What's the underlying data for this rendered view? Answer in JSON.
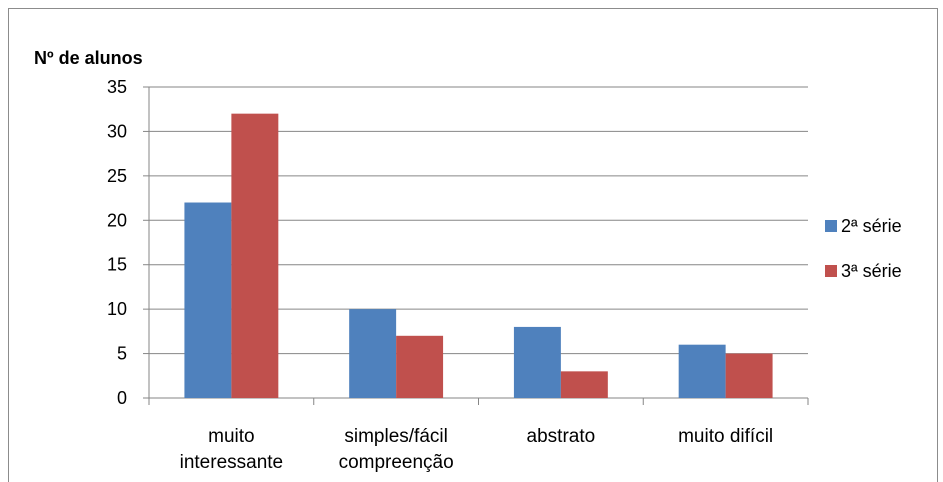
{
  "chart_data": {
    "type": "bar",
    "title": "",
    "ylabel": "Nº de alunos",
    "xlabel": "",
    "categories": [
      [
        "muito",
        "interessante"
      ],
      [
        "simples/fácil",
        "compreenção"
      ],
      [
        "abstrato"
      ],
      [
        "muito difícil"
      ]
    ],
    "series": [
      {
        "name": "2ª série",
        "values": [
          22,
          10,
          8,
          6
        ],
        "color": "#4f81bd"
      },
      {
        "name": "3ª série",
        "values": [
          32,
          7,
          3,
          5
        ],
        "color": "#c0504d"
      }
    ],
    "ylim": [
      0,
      35
    ],
    "yticks": [
      0,
      5,
      10,
      15,
      20,
      25,
      30,
      35
    ],
    "grid": true,
    "legend": "right"
  }
}
